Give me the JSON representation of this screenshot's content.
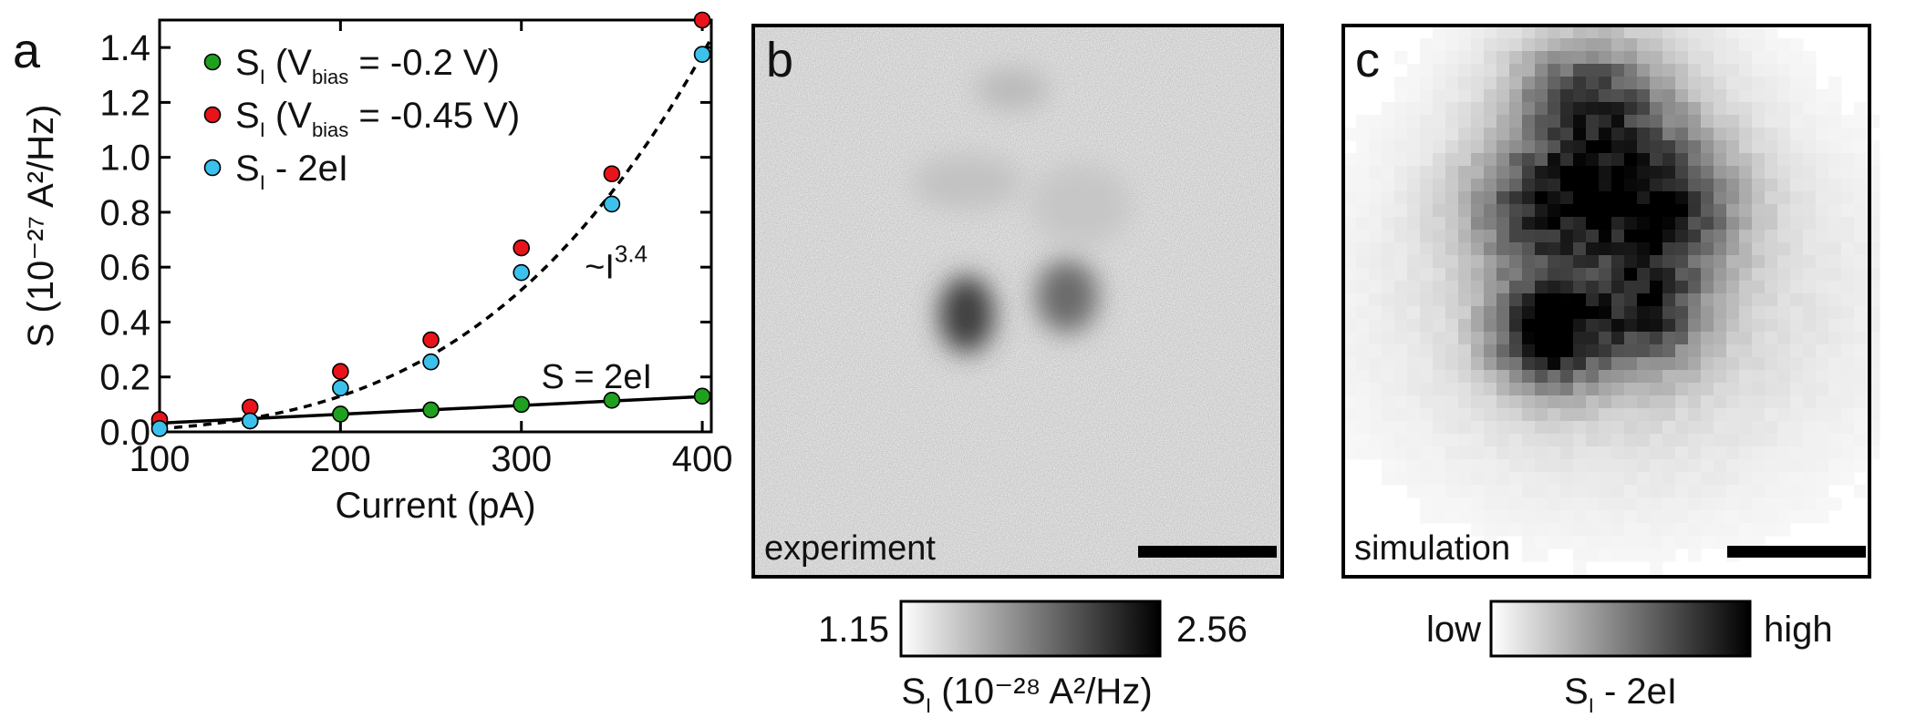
{
  "chart_data": [
    {
      "panel": "a",
      "type": "scatter",
      "xlabel": "Current (pA)",
      "ylabel": "S (10⁻²⁷ A²/Hz)",
      "xlim": [
        100,
        405
      ],
      "ylim": [
        0,
        1.5
      ],
      "xticks": [
        100,
        200,
        300,
        400
      ],
      "yticks": [
        0.0,
        0.2,
        0.4,
        0.6,
        0.8,
        1.0,
        1.2,
        1.4
      ],
      "ytick_labels": [
        "0.0",
        "0.2",
        "0.4",
        "0.6",
        "0.8",
        "1.0",
        "1.2",
        "1.4"
      ],
      "legend_position": "top-left",
      "series": [
        {
          "name": "S_I (V_bias = -0.2 V)",
          "legend_main": "S",
          "legend_sub": "I",
          "legend_text": " (V",
          "legend_sub2": "bias",
          "legend_tail": " = -0.2 V)",
          "color": "#1fa01f",
          "x": [
            100,
            150,
            200,
            250,
            300,
            350,
            400
          ],
          "y": [
            0.03,
            0.04,
            0.065,
            0.08,
            0.1,
            0.115,
            0.13
          ]
        },
        {
          "name": "S_I (V_bias = -0.45 V)",
          "legend_main": "S",
          "legend_sub": "I",
          "legend_text": " (V",
          "legend_sub2": "bias",
          "legend_tail": " = -0.45 V)",
          "color": "#e8141a",
          "x": [
            100,
            150,
            200,
            250,
            300,
            350,
            400
          ],
          "y": [
            0.045,
            0.09,
            0.22,
            0.335,
            0.67,
            0.94,
            1.5
          ]
        },
        {
          "name": "S_I - 2eI",
          "legend_main": "S",
          "legend_sub": "I",
          "legend_text": " - 2eI",
          "legend_sub2": "",
          "legend_tail": "",
          "color": "#3cc1ec",
          "x": [
            100,
            150,
            200,
            250,
            300,
            350,
            400
          ],
          "y": [
            0.012,
            0.04,
            0.16,
            0.255,
            0.58,
            0.83,
            1.375
          ]
        }
      ],
      "lines": [
        {
          "name": "S = 2eI",
          "label": "S = 2eI",
          "style": "solid",
          "x": [
            100,
            405
          ],
          "y": [
            0.032,
            0.13
          ]
        },
        {
          "name": "power-law fit",
          "label_main": "~I",
          "label_exp": "3.4",
          "style": "dashed",
          "exponent": 3.4,
          "y_at_400": 1.375
        }
      ]
    },
    {
      "panel": "b",
      "type": "heatmap",
      "label": "experiment",
      "colorbar": {
        "min_label": "1.15",
        "max_label": "2.56",
        "title_main": "S",
        "title_sub": "I",
        "title_rest": " (10⁻²⁸ A²/Hz)"
      },
      "scale_bar": true
    },
    {
      "panel": "c",
      "type": "heatmap",
      "label": "simulation",
      "colorbar": {
        "min_label": "low",
        "max_label": "high",
        "title_main": "S",
        "title_sub": "I",
        "title_rest": " - 2eI"
      },
      "scale_bar": true
    }
  ]
}
